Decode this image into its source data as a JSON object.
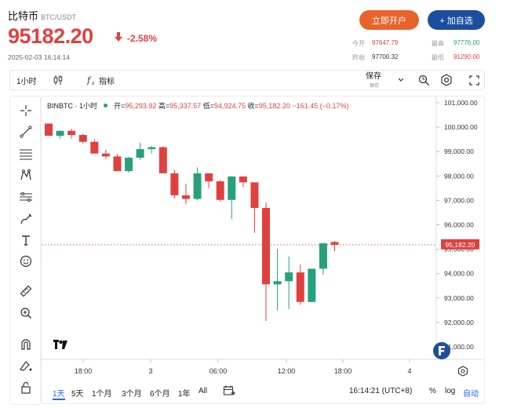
{
  "header": {
    "name": "比特币",
    "pair": "BTC/USDT",
    "price": "95182.20",
    "change": "-2.58%",
    "timestamp": "2025-02-03 16:14:14",
    "open_account_label": "立即开户",
    "add_watch_label": "+ 加自选",
    "stats": [
      {
        "label": "今开",
        "value": "97647.79",
        "color": "#e0413f"
      },
      {
        "label": "最高",
        "value": "97776.00",
        "color": "#20a36a"
      },
      {
        "label": "昨收",
        "value": "97700.32",
        "color": "#333333"
      },
      {
        "label": "最低",
        "value": "91290.00",
        "color": "#e0413f"
      }
    ]
  },
  "toolbar": {
    "interval": "1小时",
    "indicators": "指标",
    "save": "保存",
    "save_sub": "保存"
  },
  "chart_data": {
    "type": "candlestick",
    "symbol_label": "BINBTC · 1小时",
    "ohlc_text": {
      "open_label": "开=",
      "open": "95,293.92",
      "high_label": "高=",
      "high": "95,337.57",
      "low_label": "低=",
      "low": "94,924.75",
      "close_label": "收=",
      "close": "95,182.20",
      "change": "−161.45 (−0.17%)"
    },
    "ylim": [
      91000,
      101000
    ],
    "y_ticks": [
      "101,000.00",
      "100,000.00",
      "99,000.00",
      "98,000.00",
      "97,000.00",
      "96,000.00",
      "95,000.00",
      "94,000.00",
      "93,000.00",
      "92,000.00",
      "91,000.00"
    ],
    "x_ticks": [
      "18:00",
      "3",
      "06:00",
      "12:00",
      "18:00",
      "4"
    ],
    "last_price": "95,182.20",
    "colors": {
      "up": "#26a17b",
      "down": "#e0413f"
    },
    "candles": [
      {
        "o": 100150,
        "h": 100150,
        "l": 99650,
        "c": 99650
      },
      {
        "o": 99650,
        "h": 99870,
        "l": 99530,
        "c": 99850
      },
      {
        "o": 99850,
        "h": 99930,
        "l": 99530,
        "c": 99680
      },
      {
        "o": 99680,
        "h": 99730,
        "l": 99330,
        "c": 99400
      },
      {
        "o": 99400,
        "h": 99510,
        "l": 98930,
        "c": 98920
      },
      {
        "o": 98920,
        "h": 99080,
        "l": 98710,
        "c": 98800
      },
      {
        "o": 98800,
        "h": 98900,
        "l": 98200,
        "c": 98200
      },
      {
        "o": 98200,
        "h": 98790,
        "l": 98140,
        "c": 98750
      },
      {
        "o": 98750,
        "h": 99360,
        "l": 98660,
        "c": 99100
      },
      {
        "o": 99100,
        "h": 99240,
        "l": 98920,
        "c": 99180
      },
      {
        "o": 99180,
        "h": 99220,
        "l": 98130,
        "c": 98110
      },
      {
        "o": 98110,
        "h": 98250,
        "l": 97080,
        "c": 97210
      },
      {
        "o": 97210,
        "h": 97680,
        "l": 96840,
        "c": 97060
      },
      {
        "o": 97060,
        "h": 98350,
        "l": 97000,
        "c": 98110
      },
      {
        "o": 98110,
        "h": 98010,
        "l": 97500,
        "c": 97780
      },
      {
        "o": 97780,
        "h": 97830,
        "l": 96950,
        "c": 97020
      },
      {
        "o": 97020,
        "h": 98000,
        "l": 96230,
        "c": 97980
      },
      {
        "o": 97980,
        "h": 97990,
        "l": 97540,
        "c": 97740
      },
      {
        "o": 97740,
        "h": 97720,
        "l": 95670,
        "c": 96690
      },
      {
        "o": 96690,
        "h": 96920,
        "l": 92060,
        "c": 93560
      },
      {
        "o": 93560,
        "h": 95010,
        "l": 92490,
        "c": 93690
      },
      {
        "o": 93690,
        "h": 94700,
        "l": 92540,
        "c": 94050
      },
      {
        "o": 94050,
        "h": 94370,
        "l": 92720,
        "c": 92840
      },
      {
        "o": 92840,
        "h": 94160,
        "l": 92820,
        "c": 94200
      },
      {
        "o": 94200,
        "h": 95280,
        "l": 93960,
        "c": 95240
      },
      {
        "o": 95293.92,
        "h": 95337.57,
        "l": 94924.75,
        "c": 95182.2
      }
    ]
  },
  "ranges": [
    "1天",
    "5天",
    "1个月",
    "3个月",
    "6个月",
    "1年",
    "All"
  ],
  "active_range": "1天",
  "clock": "16:14:21 (UTC+8)",
  "bottom_right": [
    "%",
    "log",
    "自动"
  ],
  "tools": [
    "crosshair-icon",
    "trend-line-icon",
    "fib-retracement-icon",
    "pattern-icon",
    "measure-lines-icon",
    "brush-icon",
    "text-icon",
    "emoji-icon",
    "ruler-icon",
    "zoom-in-icon",
    "magnet-icon",
    "lock-drawing-icon",
    "lock-icon"
  ]
}
